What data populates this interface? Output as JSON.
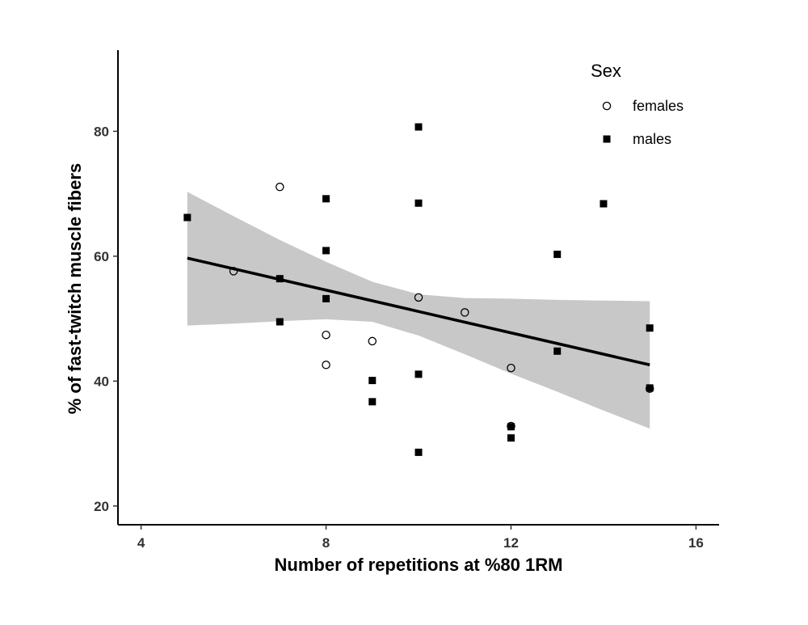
{
  "chart_data": {
    "type": "scatter",
    "title": "",
    "xlabel": "Number of repetitions at %80 1RM",
    "ylabel": "% of fast-twitch muscle fibers",
    "xlim": [
      3.5,
      16.5
    ],
    "ylim": [
      17,
      93
    ],
    "xticks": [
      "4",
      "8",
      "12",
      "16"
    ],
    "yticks": [
      "20",
      "40",
      "60",
      "80"
    ],
    "grid": false,
    "legend": {
      "title": "Sex",
      "position": "top-right",
      "entries": [
        {
          "label": "females",
          "marker": "open-circle"
        },
        {
          "label": "males",
          "marker": "filled-square"
        }
      ]
    },
    "series": [
      {
        "name": "females",
        "marker": "open-circle",
        "points": [
          {
            "x": 6,
            "y": 57.6
          },
          {
            "x": 7,
            "y": 71.1
          },
          {
            "x": 8,
            "y": 47.4
          },
          {
            "x": 8,
            "y": 42.6
          },
          {
            "x": 9,
            "y": 46.4
          },
          {
            "x": 10,
            "y": 53.4
          },
          {
            "x": 11,
            "y": 51.0
          },
          {
            "x": 12,
            "y": 42.1
          },
          {
            "x": 12,
            "y": 32.8
          },
          {
            "x": 15,
            "y": 38.8
          }
        ]
      },
      {
        "name": "males",
        "marker": "filled-square",
        "points": [
          {
            "x": 5,
            "y": 66.2
          },
          {
            "x": 7,
            "y": 56.4
          },
          {
            "x": 7,
            "y": 49.5
          },
          {
            "x": 8,
            "y": 69.2
          },
          {
            "x": 8,
            "y": 60.9
          },
          {
            "x": 8,
            "y": 53.2
          },
          {
            "x": 9,
            "y": 40.1
          },
          {
            "x": 9,
            "y": 36.7
          },
          {
            "x": 10,
            "y": 80.7
          },
          {
            "x": 10,
            "y": 68.5
          },
          {
            "x": 10,
            "y": 41.1
          },
          {
            "x": 10,
            "y": 28.6
          },
          {
            "x": 12,
            "y": 32.7
          },
          {
            "x": 12,
            "y": 30.9
          },
          {
            "x": 13,
            "y": 60.3
          },
          {
            "x": 13,
            "y": 44.8
          },
          {
            "x": 14,
            "y": 68.4
          },
          {
            "x": 15,
            "y": 48.5
          },
          {
            "x": 15,
            "y": 38.9
          }
        ]
      }
    ],
    "trend_line": {
      "x": [
        5,
        15
      ],
      "y": [
        59.7,
        42.6
      ]
    },
    "confidence_band": {
      "x": [
        5,
        6,
        7,
        8,
        9,
        10,
        11,
        12,
        13,
        14,
        15
      ],
      "lower": [
        48.9,
        49.2,
        49.6,
        49.9,
        49.5,
        47.3,
        44.3,
        41.2,
        38.3,
        35.3,
        32.4
      ],
      "upper": [
        70.3,
        66.4,
        62.6,
        59.1,
        55.9,
        53.9,
        53.3,
        53.2,
        53.0,
        52.9,
        52.8
      ]
    },
    "colors": {
      "points": "#000000",
      "line": "#000000",
      "band": "#c8c8c8",
      "axis": "#000000"
    }
  }
}
